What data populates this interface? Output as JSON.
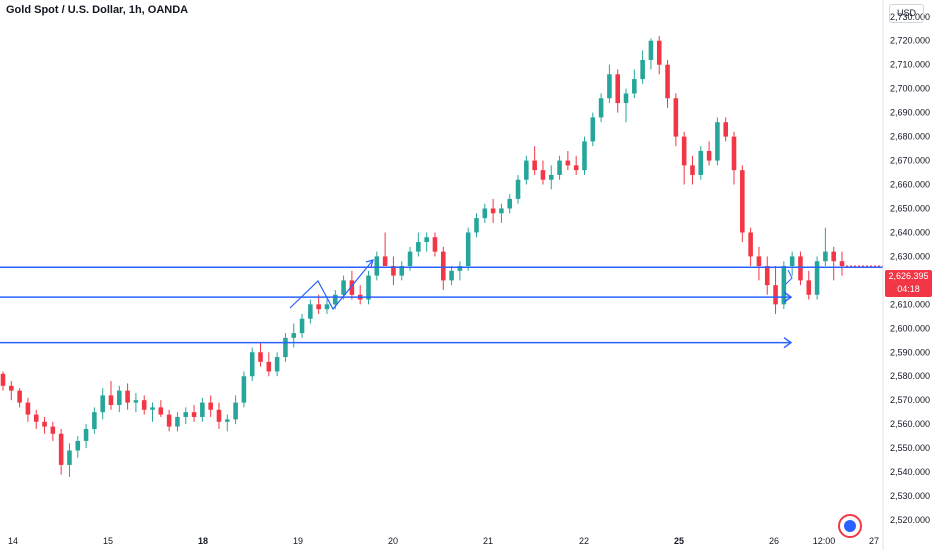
{
  "header": {
    "title": "Gold Spot / U.S. Dollar, 1h, OANDA",
    "currency": "USD"
  },
  "price_tag": {
    "price": "2,626.395",
    "countdown": "04:18"
  },
  "colors": {
    "up": "#26a69a",
    "down": "#f23645",
    "drawing": "#2962ff",
    "grid": "#f0f3fa",
    "axis_text": "#131722"
  },
  "chart_data": {
    "type": "candlestick",
    "title": "Gold Spot / U.S. Dollar, 1h, OANDA",
    "ylim": [
      2515,
      2737
    ],
    "y_ticks": [
      2520,
      2530,
      2540,
      2550,
      2560,
      2570,
      2580,
      2590,
      2600,
      2610,
      2620,
      2630,
      2640,
      2650,
      2660,
      2670,
      2680,
      2690,
      2700,
      2710,
      2720,
      2730
    ],
    "x_ticks": [
      "14",
      "15",
      "18",
      "19",
      "20",
      "21",
      "22",
      "25",
      "26",
      "12:00",
      "27"
    ],
    "grid": false,
    "candles": [
      [
        2581,
        2582,
        2574,
        2576
      ],
      [
        2576,
        2578,
        2570,
        2574
      ],
      [
        2574,
        2575,
        2567,
        2569
      ],
      [
        2569,
        2571,
        2561,
        2564
      ],
      [
        2564,
        2566,
        2558,
        2561
      ],
      [
        2561,
        2563,
        2556,
        2559
      ],
      [
        2559,
        2561,
        2553,
        2556
      ],
      [
        2556,
        2558,
        2539,
        2543
      ],
      [
        2543,
        2552,
        2538,
        2549
      ],
      [
        2549,
        2555,
        2546,
        2553
      ],
      [
        2553,
        2560,
        2550,
        2558
      ],
      [
        2558,
        2567,
        2556,
        2565
      ],
      [
        2565,
        2575,
        2562,
        2572
      ],
      [
        2572,
        2578,
        2566,
        2568
      ],
      [
        2568,
        2576,
        2565,
        2574
      ],
      [
        2574,
        2577,
        2566,
        2569
      ],
      [
        2569,
        2573,
        2565,
        2570
      ],
      [
        2570,
        2572,
        2564,
        2566
      ],
      [
        2566,
        2569,
        2561,
        2567
      ],
      [
        2567,
        2570,
        2563,
        2564
      ],
      [
        2564,
        2566,
        2557,
        2559
      ],
      [
        2559,
        2565,
        2557,
        2563
      ],
      [
        2563,
        2567,
        2560,
        2565
      ],
      [
        2565,
        2568,
        2561,
        2563
      ],
      [
        2563,
        2571,
        2561,
        2569
      ],
      [
        2569,
        2572,
        2563,
        2566
      ],
      [
        2566,
        2569,
        2558,
        2561
      ],
      [
        2561,
        2564,
        2557,
        2562
      ],
      [
        2562,
        2572,
        2560,
        2569
      ],
      [
        2569,
        2582,
        2567,
        2580
      ],
      [
        2580,
        2592,
        2578,
        2590
      ],
      [
        2590,
        2594,
        2584,
        2586
      ],
      [
        2586,
        2590,
        2580,
        2582
      ],
      [
        2582,
        2590,
        2580,
        2588
      ],
      [
        2588,
        2598,
        2586,
        2596
      ],
      [
        2596,
        2602,
        2592,
        2598
      ],
      [
        2598,
        2606,
        2596,
        2604
      ],
      [
        2604,
        2612,
        2602,
        2610
      ],
      [
        2610,
        2614,
        2606,
        2608
      ],
      [
        2608,
        2612,
        2606,
        2610
      ],
      [
        2610,
        2616,
        2608,
        2614
      ],
      [
        2614,
        2622,
        2612,
        2620
      ],
      [
        2620,
        2624,
        2612,
        2614
      ],
      [
        2614,
        2618,
        2610,
        2612
      ],
      [
        2612,
        2624,
        2610,
        2622
      ],
      [
        2622,
        2632,
        2620,
        2630
      ],
      [
        2630,
        2640,
        2626,
        2626
      ],
      [
        2626,
        2630,
        2618,
        2622
      ],
      [
        2622,
        2628,
        2620,
        2626
      ],
      [
        2626,
        2634,
        2624,
        2632
      ],
      [
        2632,
        2640,
        2630,
        2636
      ],
      [
        2636,
        2640,
        2632,
        2638
      ],
      [
        2638,
        2640,
        2630,
        2632
      ],
      [
        2632,
        2634,
        2616,
        2620
      ],
      [
        2620,
        2626,
        2618,
        2624
      ],
      [
        2624,
        2628,
        2620,
        2626
      ],
      [
        2626,
        2642,
        2624,
        2640
      ],
      [
        2640,
        2648,
        2638,
        2646
      ],
      [
        2646,
        2652,
        2644,
        2650
      ],
      [
        2650,
        2654,
        2644,
        2648
      ],
      [
        2648,
        2652,
        2644,
        2650
      ],
      [
        2650,
        2656,
        2648,
        2654
      ],
      [
        2654,
        2664,
        2652,
        2662
      ],
      [
        2662,
        2672,
        2660,
        2670
      ],
      [
        2670,
        2676,
        2664,
        2666
      ],
      [
        2666,
        2670,
        2660,
        2662
      ],
      [
        2662,
        2668,
        2658,
        2664
      ],
      [
        2664,
        2672,
        2662,
        2670
      ],
      [
        2670,
        2674,
        2666,
        2668
      ],
      [
        2668,
        2672,
        2664,
        2666
      ],
      [
        2666,
        2680,
        2664,
        2678
      ],
      [
        2678,
        2690,
        2676,
        2688
      ],
      [
        2688,
        2698,
        2686,
        2696
      ],
      [
        2696,
        2710,
        2694,
        2706
      ],
      [
        2706,
        2708,
        2690,
        2694
      ],
      [
        2694,
        2700,
        2686,
        2698
      ],
      [
        2698,
        2708,
        2696,
        2704
      ],
      [
        2704,
        2716,
        2702,
        2712
      ],
      [
        2712,
        2721,
        2708,
        2720
      ],
      [
        2720,
        2722,
        2706,
        2710
      ],
      [
        2710,
        2712,
        2692,
        2696
      ],
      [
        2696,
        2698,
        2676,
        2680
      ],
      [
        2680,
        2682,
        2660,
        2668
      ],
      [
        2668,
        2672,
        2660,
        2664
      ],
      [
        2664,
        2676,
        2662,
        2674
      ],
      [
        2674,
        2678,
        2668,
        2670
      ],
      [
        2670,
        2688,
        2668,
        2686
      ],
      [
        2686,
        2688,
        2678,
        2680
      ],
      [
        2680,
        2682,
        2660,
        2666
      ],
      [
        2666,
        2668,
        2636,
        2640
      ],
      [
        2640,
        2642,
        2626,
        2630
      ],
      [
        2630,
        2634,
        2620,
        2626
      ],
      [
        2626,
        2630,
        2614,
        2618
      ],
      [
        2618,
        2626,
        2606,
        2610
      ],
      [
        2610,
        2628,
        2608,
        2626
      ],
      [
        2626,
        2632,
        2622,
        2630
      ],
      [
        2630,
        2632,
        2618,
        2620
      ],
      [
        2620,
        2624,
        2612,
        2614
      ],
      [
        2614,
        2630,
        2612,
        2628
      ],
      [
        2628,
        2642,
        2626,
        2632
      ],
      [
        2632,
        2634,
        2620,
        2628
      ],
      [
        2628,
        2632,
        2622,
        2626
      ]
    ],
    "horizontal_lines": [
      2625.5,
      2613,
      2594
    ],
    "annotations": [
      "zigzag arrow",
      "arrow right",
      "arrow right"
    ]
  }
}
